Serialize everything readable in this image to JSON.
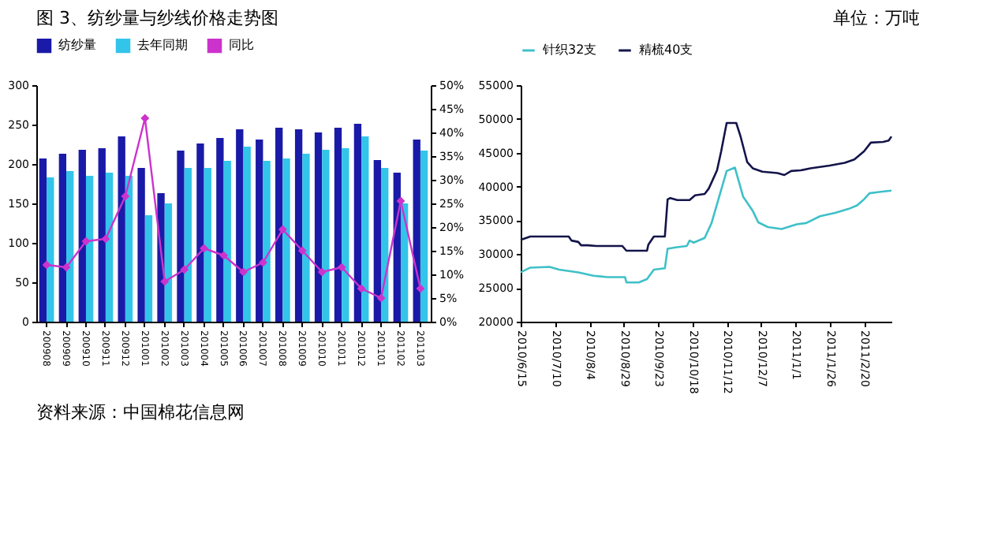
{
  "chart_data": [
    {
      "type": "bar",
      "title": "图 3、纺纱量与纱线价格走势图",
      "annotations": [
        "单位：万吨",
        "资料来源：中国棉花信息网"
      ],
      "categories": [
        "200908",
        "200909",
        "200910",
        "200911",
        "200912",
        "201001",
        "201002",
        "201003",
        "201004",
        "201005",
        "201006",
        "201007",
        "201008",
        "201009",
        "201010",
        "201011",
        "201012",
        "201101",
        "201102",
        "201103"
      ],
      "series": [
        {
          "name": "纺纱量",
          "color": "#1a1aa8",
          "values": [
            207,
            213,
            218,
            220,
            235,
            195,
            163,
            217,
            226,
            233,
            244,
            231,
            246,
            244,
            240,
            246,
            251,
            205,
            189,
            231
          ]
        },
        {
          "name": "去年同期",
          "color": "#33c4ea",
          "values": [
            183,
            191,
            185,
            189,
            185,
            135,
            150,
            195,
            195,
            204,
            222,
            204,
            207,
            213,
            218,
            220,
            235,
            195,
            150,
            217
          ]
        },
        {
          "name": "同比",
          "type": "line",
          "axis": "y2",
          "marker": "diamond",
          "color": "#cc33cc",
          "values": [
            12,
            11.5,
            17,
            17.5,
            26.5,
            43,
            8.5,
            11,
            15.5,
            14,
            10.5,
            12.5,
            19.5,
            15,
            10.5,
            11.5,
            7,
            5,
            25.5,
            7
          ]
        }
      ],
      "ylim": [
        0,
        300
      ],
      "yticks": [
        0,
        50,
        100,
        150,
        200,
        250,
        300
      ],
      "y2lim": [
        0,
        50
      ],
      "y2ticks": [
        {
          "value": 0,
          "label": "0%"
        },
        {
          "value": 5,
          "label": "5%"
        },
        {
          "value": 10,
          "label": "10%"
        },
        {
          "value": 15,
          "label": "15%"
        },
        {
          "value": 20,
          "label": "20%"
        },
        {
          "value": 25,
          "label": "25%"
        },
        {
          "value": 30,
          "label": "30%"
        },
        {
          "value": 35,
          "label": "35%"
        },
        {
          "value": 40,
          "label": "40%"
        },
        {
          "value": 45,
          "label": "45%"
        },
        {
          "value": 50,
          "label": "50%"
        }
      ],
      "legend": "top"
    },
    {
      "type": "line",
      "line_style": "solid",
      "series": [
        {
          "name": "针织32支",
          "color": "#3fc0c8",
          "x": [
            "2010-06-15",
            "2010-06-22",
            "2010-07-06",
            "2010-07-13",
            "2010-07-27",
            "2010-08-07",
            "2010-08-17",
            "2010-08-30",
            "2010-08-31",
            "2010-09-09",
            "2010-09-15",
            "2010-09-20",
            "2010-09-28",
            "2010-09-30",
            "2010-10-06",
            "2010-10-14",
            "2010-10-16",
            "2010-10-19",
            "2010-10-27",
            "2010-11-01",
            "2010-11-06",
            "2010-11-12",
            "2010-11-18",
            "2010-11-24",
            "2010-12-01",
            "2010-12-05",
            "2010-12-12",
            "2010-12-22",
            "2011-01-02",
            "2011-01-09",
            "2011-01-19",
            "2011-01-30",
            "2011-02-09",
            "2011-02-15",
            "2011-02-20",
            "2011-02-24",
            "2011-03-03",
            "2011-03-12"
          ],
          "values": [
            27300,
            28000,
            28100,
            27700,
            27300,
            26800,
            26600,
            26600,
            25800,
            25800,
            26300,
            27700,
            27900,
            30800,
            31000,
            31200,
            32000,
            31700,
            32400,
            34600,
            38100,
            42300,
            42800,
            38500,
            36400,
            34700,
            34000,
            33700,
            34400,
            34600,
            35600,
            36100,
            36700,
            37200,
            38100,
            39000,
            39200,
            39400
          ]
        },
        {
          "name": "精梳40支",
          "color": "#14144a",
          "x": [
            "2010-06-15",
            "2010-06-22",
            "2010-07-20",
            "2010-07-22",
            "2010-07-27",
            "2010-07-29",
            "2010-08-03",
            "2010-08-09",
            "2010-08-28",
            "2010-08-31",
            "2010-09-15",
            "2010-09-16",
            "2010-09-20",
            "2010-09-28",
            "2010-09-30",
            "2010-10-02",
            "2010-10-07",
            "2010-10-16",
            "2010-10-20",
            "2010-10-27",
            "2010-10-30",
            "2010-11-05",
            "2010-11-08",
            "2010-11-12",
            "2010-11-19",
            "2010-11-22",
            "2010-11-27",
            "2010-12-01",
            "2010-12-08",
            "2010-12-19",
            "2010-12-24",
            "2010-12-29",
            "2011-01-05",
            "2011-01-12",
            "2011-01-26",
            "2011-02-06",
            "2011-02-13",
            "2011-02-20",
            "2011-02-25",
            "2011-03-06",
            "2011-03-10",
            "2011-03-12"
          ],
          "values": [
            32100,
            32600,
            32600,
            32000,
            31800,
            31300,
            31300,
            31200,
            31200,
            30500,
            30500,
            31400,
            32600,
            32600,
            38100,
            38300,
            38000,
            38000,
            38700,
            38900,
            39700,
            42400,
            45200,
            49400,
            49400,
            47500,
            43600,
            42700,
            42200,
            42000,
            41700,
            42300,
            42400,
            42700,
            43100,
            43500,
            44000,
            45200,
            46500,
            46600,
            46800,
            47400
          ]
        }
      ],
      "xlim": [
        "2010-06-15",
        "2011-03-12"
      ],
      "xticks": [
        {
          "value": "2010-06-15",
          "label": "2010/6/15"
        },
        {
          "value": "2010-07-10",
          "label": "2010/7/10"
        },
        {
          "value": "2010-08-04",
          "label": "2010/8/4"
        },
        {
          "value": "2010-08-29",
          "label": "2010/8/29"
        },
        {
          "value": "2010-09-23",
          "label": "2010/9/23"
        },
        {
          "value": "2010-10-18",
          "label": "2010/10/18"
        },
        {
          "value": "2010-11-12",
          "label": "2010/11/12"
        },
        {
          "value": "2010-12-07",
          "label": "2010/12/7"
        },
        {
          "value": "2011-01-01",
          "label": "2011/1/1"
        },
        {
          "value": "2011-01-26",
          "label": "2011/1/26"
        },
        {
          "value": "2011-02-20",
          "label": "2011/2/20"
        }
      ],
      "ylim": [
        20000,
        55000
      ],
      "yticks": [
        20000,
        25000,
        30000,
        35000,
        40000,
        45000,
        50000,
        55000
      ],
      "legend": "top"
    }
  ]
}
